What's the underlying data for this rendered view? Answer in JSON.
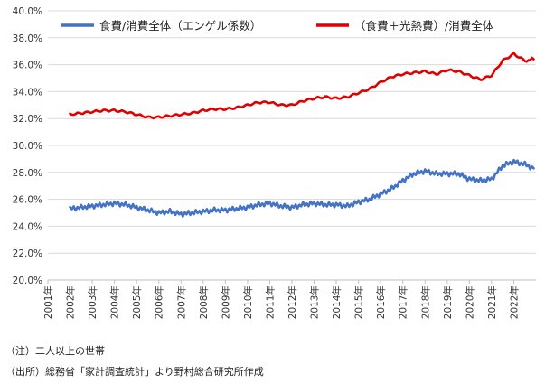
{
  "chart_data": {
    "type": "line",
    "title": "",
    "xlabel": "",
    "ylabel": "",
    "ylim": [
      20.0,
      40.0
    ],
    "yticks": [
      "20.0%",
      "22.0%",
      "24.0%",
      "26.0%",
      "28.0%",
      "30.0%",
      "32.0%",
      "34.0%",
      "36.0%",
      "38.0%",
      "40.0%"
    ],
    "xticks": [
      "2001年",
      "2002年",
      "2003年",
      "2004年",
      "2005年",
      "2006年",
      "2007年",
      "2008年",
      "2009年",
      "2010年",
      "2011年",
      "2012年",
      "2013年",
      "2014年",
      "2015年",
      "2016年",
      "2017年",
      "2018年",
      "2019年",
      "2020年",
      "2021年",
      "2022年"
    ],
    "x_range": [
      2001.0,
      2023.0
    ],
    "legend_position": "top",
    "series": [
      {
        "name": "食費/消費全体（エンゲル係数）",
        "color": "#4472c4",
        "x": [
          2002.0,
          2002.5,
          2003.0,
          2003.5,
          2004.0,
          2004.5,
          2005.0,
          2005.5,
          2006.0,
          2006.5,
          2007.0,
          2007.5,
          2008.0,
          2008.5,
          2009.0,
          2009.5,
          2010.0,
          2010.5,
          2011.0,
          2011.5,
          2012.0,
          2012.5,
          2013.0,
          2013.5,
          2014.0,
          2014.5,
          2015.0,
          2015.5,
          2016.0,
          2016.5,
          2017.0,
          2017.5,
          2018.0,
          2018.5,
          2019.0,
          2019.5,
          2020.0,
          2020.5,
          2021.0,
          2021.5,
          2022.0,
          2022.5,
          2022.9
        ],
        "values": [
          25.3,
          25.4,
          25.5,
          25.6,
          25.7,
          25.6,
          25.4,
          25.2,
          25.0,
          25.1,
          24.9,
          25.0,
          25.1,
          25.2,
          25.2,
          25.3,
          25.4,
          25.6,
          25.7,
          25.5,
          25.4,
          25.6,
          25.7,
          25.6,
          25.6,
          25.5,
          25.8,
          26.0,
          26.4,
          26.8,
          27.4,
          27.9,
          28.1,
          27.9,
          27.9,
          27.9,
          27.5,
          27.4,
          27.5,
          28.5,
          28.8,
          28.6,
          28.3
        ]
      },
      {
        "name": "（食費＋光熱費）/消費全体",
        "color": "#e00000",
        "x": [
          2002.0,
          2002.5,
          2003.0,
          2003.5,
          2004.0,
          2004.5,
          2005.0,
          2005.5,
          2006.0,
          2006.5,
          2007.0,
          2007.5,
          2008.0,
          2008.5,
          2009.0,
          2009.5,
          2010.0,
          2010.5,
          2011.0,
          2011.5,
          2012.0,
          2012.5,
          2013.0,
          2013.5,
          2014.0,
          2014.5,
          2015.0,
          2015.5,
          2016.0,
          2016.5,
          2017.0,
          2017.5,
          2018.0,
          2018.5,
          2019.0,
          2019.5,
          2020.0,
          2020.5,
          2021.0,
          2021.5,
          2022.0,
          2022.5,
          2022.9
        ],
        "values": [
          32.3,
          32.4,
          32.5,
          32.6,
          32.6,
          32.5,
          32.3,
          32.1,
          32.1,
          32.2,
          32.3,
          32.4,
          32.6,
          32.7,
          32.7,
          32.8,
          33.0,
          33.2,
          33.2,
          33.0,
          33.0,
          33.3,
          33.5,
          33.6,
          33.5,
          33.6,
          33.9,
          34.2,
          34.7,
          35.1,
          35.3,
          35.4,
          35.5,
          35.3,
          35.6,
          35.5,
          35.2,
          34.9,
          35.2,
          36.3,
          36.8,
          36.3,
          36.4
        ]
      }
    ]
  },
  "notes": {
    "note1": "（注）二人以上の世帯",
    "note2": "（出所）総務省「家計調査統計」より野村総合研究所作成"
  }
}
